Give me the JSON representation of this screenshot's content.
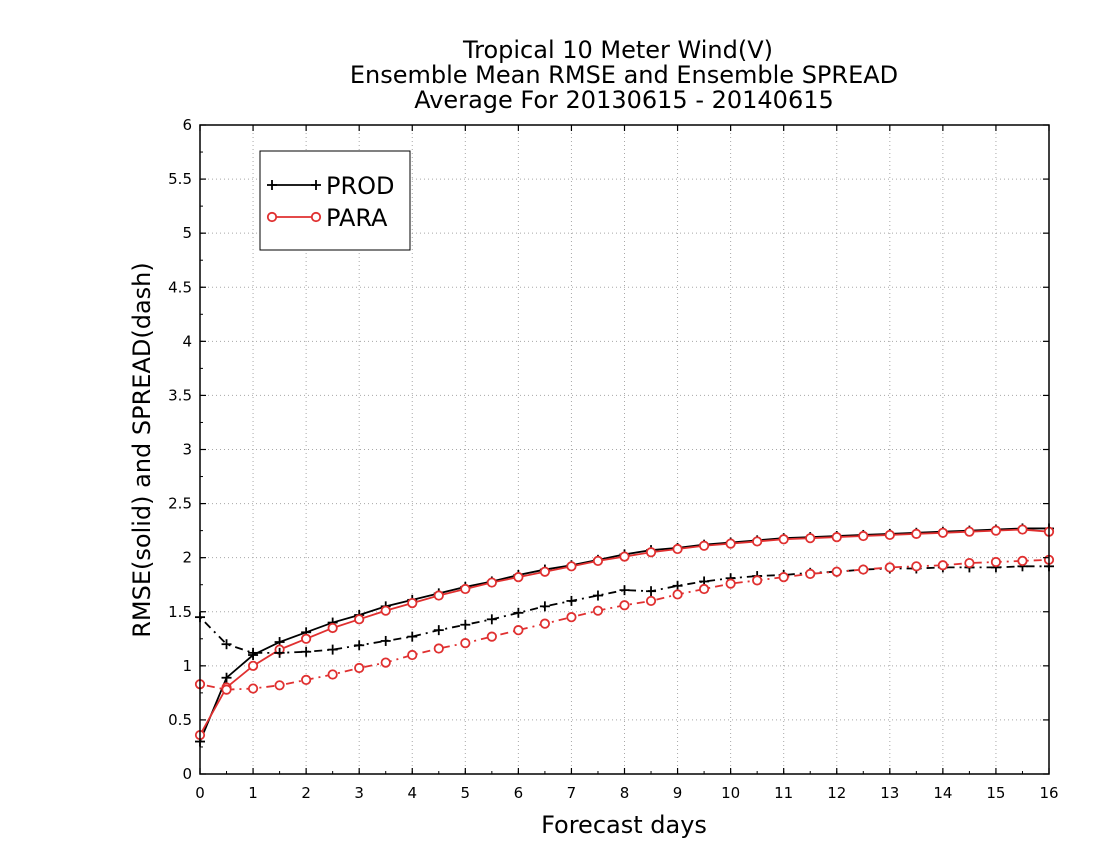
{
  "chart_data": {
    "type": "line",
    "title": [
      "Tropical 10 Meter Wind(V)",
      "Ensemble Mean RMSE and Ensemble SPREAD",
      "Average For 20130615 - 20140615"
    ],
    "xlabel": "Forecast days",
    "ylabel": "RMSE(solid) and SPREAD(dash)",
    "xlim": [
      0,
      16
    ],
    "ylim": [
      0,
      6
    ],
    "xticks": [
      0,
      1,
      2,
      3,
      4,
      5,
      6,
      7,
      8,
      9,
      10,
      11,
      12,
      13,
      14,
      15,
      16
    ],
    "xtick_labels": [
      "0",
      "1",
      "2",
      "3",
      "4",
      "5",
      "6",
      "7",
      "8",
      "9",
      "10",
      "11",
      "12",
      "13",
      "14",
      "15",
      "16"
    ],
    "yticks": [
      0,
      0.5,
      1,
      1.5,
      2,
      2.5,
      3,
      3.5,
      4,
      4.5,
      5,
      5.5,
      6
    ],
    "ytick_labels": [
      "0",
      "0.5",
      "1",
      "1.5",
      "2",
      "2.5",
      "3",
      "3.5",
      "4",
      "4.5",
      "5",
      "5.5",
      "6"
    ],
    "grid": true,
    "legend_position": "top-left",
    "x": [
      0,
      0.5,
      1,
      1.5,
      2,
      2.5,
      3,
      3.5,
      4,
      4.5,
      5,
      5.5,
      6,
      6.5,
      7,
      7.5,
      8,
      8.5,
      9,
      9.5,
      10,
      10.5,
      11,
      11.5,
      12,
      12.5,
      13,
      13.5,
      14,
      14.5,
      15,
      15.5,
      16
    ],
    "series": [
      {
        "name": "PROD",
        "metric": "RMSE",
        "style": "solid",
        "marker": "plus",
        "color": "#000000",
        "values": [
          0.3,
          0.89,
          1.1,
          1.22,
          1.31,
          1.4,
          1.47,
          1.55,
          1.61,
          1.67,
          1.73,
          1.78,
          1.84,
          1.89,
          1.93,
          1.98,
          2.03,
          2.07,
          2.09,
          2.12,
          2.14,
          2.16,
          2.18,
          2.19,
          2.2,
          2.21,
          2.22,
          2.23,
          2.24,
          2.25,
          2.26,
          2.27,
          2.27
        ]
      },
      {
        "name": "PARA",
        "metric": "RMSE",
        "style": "solid",
        "marker": "circle",
        "color": "#e03030",
        "values": [
          0.36,
          0.8,
          1.0,
          1.15,
          1.25,
          1.35,
          1.43,
          1.51,
          1.58,
          1.65,
          1.71,
          1.77,
          1.82,
          1.87,
          1.92,
          1.97,
          2.01,
          2.05,
          2.08,
          2.11,
          2.13,
          2.15,
          2.17,
          2.18,
          2.19,
          2.2,
          2.21,
          2.22,
          2.23,
          2.24,
          2.25,
          2.26,
          2.24
        ]
      },
      {
        "name": "PROD",
        "metric": "SPREAD",
        "style": "dash",
        "marker": "plus",
        "color": "#000000",
        "values": [
          1.45,
          1.2,
          1.12,
          1.12,
          1.13,
          1.15,
          1.19,
          1.23,
          1.27,
          1.33,
          1.38,
          1.43,
          1.49,
          1.55,
          1.6,
          1.65,
          1.7,
          1.69,
          1.74,
          1.78,
          1.81,
          1.83,
          1.84,
          1.86,
          1.87,
          1.89,
          1.9,
          1.9,
          1.91,
          1.91,
          1.91,
          1.92,
          1.92
        ]
      },
      {
        "name": "PARA",
        "metric": "SPREAD",
        "style": "dash",
        "marker": "circle",
        "color": "#e03030",
        "values": [
          0.83,
          0.78,
          0.79,
          0.82,
          0.87,
          0.92,
          0.98,
          1.03,
          1.1,
          1.16,
          1.21,
          1.27,
          1.33,
          1.39,
          1.45,
          1.51,
          1.56,
          1.6,
          1.66,
          1.71,
          1.76,
          1.79,
          1.82,
          1.85,
          1.87,
          1.89,
          1.91,
          1.92,
          1.93,
          1.95,
          1.96,
          1.97,
          1.98
        ]
      }
    ],
    "legend": [
      {
        "label": "PROD",
        "color": "#000000",
        "marker": "plus"
      },
      {
        "label": "PARA",
        "color": "#e03030",
        "marker": "circle"
      }
    ]
  }
}
